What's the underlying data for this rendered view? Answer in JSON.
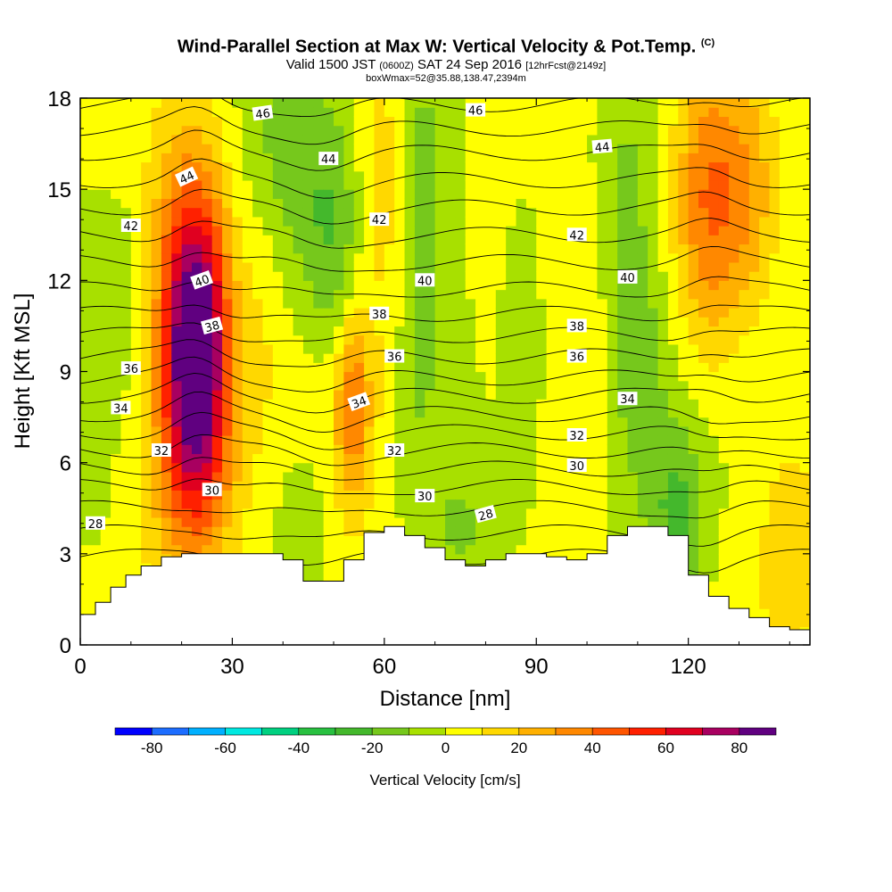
{
  "header": {
    "title": "Wind-Parallel Section at Max W: Vertical Velocity & Pot.Temp.",
    "title_tag": "(C)",
    "valid_main": "Valid 1500 JST",
    "valid_utc": "(0600Z)",
    "valid_date": "SAT 24 Sep 2016",
    "forecast": "[12hrFcst@2149z]",
    "box_info": "boxWmax=52@35.88,138.47,2394m"
  },
  "chart_data": {
    "type": "heatmap",
    "xlabel": "Distance [nm]",
    "ylabel": "Height [Kft MSL]",
    "xlim": [
      0,
      144
    ],
    "ylim": [
      0,
      18
    ],
    "x_ticks": [
      "0",
      "30",
      "60",
      "90",
      "120"
    ],
    "x_tick_values": [
      0,
      30,
      60,
      90,
      120
    ],
    "y_ticks": [
      "0",
      "3",
      "6",
      "9",
      "12",
      "15",
      "18"
    ],
    "y_tick_values": [
      0,
      3,
      6,
      9,
      12,
      15,
      18
    ],
    "colorbar": {
      "label": "Vertical Velocity [cm/s]",
      "levels": [
        -90,
        -80,
        -70,
        -60,
        -50,
        -40,
        -30,
        -20,
        -10,
        0,
        10,
        20,
        30,
        40,
        50,
        60,
        70,
        80,
        90
      ],
      "colors": [
        "#0000ff",
        "#1d6dff",
        "#00b0ff",
        "#00e8e0",
        "#00d080",
        "#28c040",
        "#44b82c",
        "#76c81c",
        "#a8e000",
        "#ffff00",
        "#ffd800",
        "#ffb000",
        "#ff8800",
        "#ff5500",
        "#ff2000",
        "#e00020",
        "#a80060",
        "#600080"
      ],
      "tick_labels": [
        "-80",
        "-60",
        "-40",
        "-20",
        "0",
        "20",
        "40",
        "60",
        "80"
      ],
      "tick_values": [
        -80,
        -60,
        -40,
        -20,
        0,
        20,
        40,
        60,
        80
      ]
    },
    "velocity_features": [
      {
        "x": 23,
        "y": 9.5,
        "sx": 4.5,
        "sy": 3.6,
        "w": 85
      },
      {
        "x": 20,
        "y": 10.5,
        "sx": 6,
        "sy": 4.5,
        "w": 25
      },
      {
        "x": 124,
        "y": 14.5,
        "sx": 4.5,
        "sy": 3.5,
        "w": 35
      },
      {
        "x": 132,
        "y": 15,
        "sx": 4,
        "sy": 3,
        "w": 20
      },
      {
        "x": 54,
        "y": 8,
        "sx": 2.2,
        "sy": 2,
        "w": 30
      },
      {
        "x": 52,
        "y": 7,
        "sx": 4,
        "sy": 4,
        "w": 12
      },
      {
        "x": 10,
        "y": 12,
        "sx": 3.5,
        "sy": 2.5,
        "w": -12
      },
      {
        "x": 3,
        "y": 9,
        "sx": 3,
        "sy": 4,
        "w": -8
      },
      {
        "x": 40,
        "y": 16.5,
        "sx": 6,
        "sy": 3,
        "w": -16
      },
      {
        "x": 50,
        "y": 13,
        "sx": 4,
        "sy": 3,
        "w": -22
      },
      {
        "x": 66,
        "y": 12,
        "sx": 3,
        "sy": 6,
        "w": -15
      },
      {
        "x": 70,
        "y": 15,
        "sx": 4,
        "sy": 4,
        "w": -12
      },
      {
        "x": 88,
        "y": 9.5,
        "sx": 3,
        "sy": 3,
        "w": -12
      },
      {
        "x": 108,
        "y": 15,
        "sx": 4,
        "sy": 4,
        "w": -12
      },
      {
        "x": 110,
        "y": 8.5,
        "sx": 4,
        "sy": 3,
        "w": -18
      },
      {
        "x": 118,
        "y": 4,
        "sx": 4,
        "sy": 2.5,
        "w": -25
      },
      {
        "x": 75,
        "y": 3.8,
        "sx": 5,
        "sy": 1.5,
        "w": -14
      },
      {
        "x": 45,
        "y": 4,
        "sx": 5,
        "sy": 2,
        "w": -10
      },
      {
        "x": 36,
        "y": 12,
        "sx": 3,
        "sy": 4,
        "w": 8
      },
      {
        "x": 62,
        "y": 10,
        "sx": 4,
        "sy": 4,
        "w": 8
      },
      {
        "x": 97,
        "y": 12,
        "sx": 6,
        "sy": 5,
        "w": 6
      },
      {
        "x": 60,
        "y": 16,
        "sx": 4,
        "sy": 3,
        "w": 10
      },
      {
        "x": 22,
        "y": 5,
        "sx": 8,
        "sy": 2,
        "w": 10
      },
      {
        "x": 140,
        "y": 3,
        "sx": 4,
        "sy": 2.5,
        "w": 18
      }
    ],
    "terrain": {
      "x": [
        0,
        3,
        6,
        9,
        12,
        16,
        20,
        24,
        28,
        32,
        36,
        40,
        44,
        48,
        52,
        56,
        60,
        64,
        68,
        72,
        76,
        80,
        84,
        88,
        92,
        96,
        100,
        104,
        108,
        112,
        116,
        120,
        124,
        128,
        132,
        136,
        140,
        144
      ],
      "height": [
        1.0,
        1.4,
        1.9,
        2.3,
        2.6,
        2.9,
        3.0,
        3.0,
        3.0,
        3.0,
        3.0,
        2.8,
        2.1,
        2.1,
        2.8,
        3.7,
        3.9,
        3.6,
        3.2,
        2.8,
        2.6,
        2.8,
        3.0,
        3.0,
        2.9,
        2.8,
        3.0,
        3.6,
        3.9,
        3.9,
        3.6,
        2.3,
        1.6,
        1.2,
        0.9,
        0.6,
        0.5,
        0.8
      ]
    },
    "theta_levels": [
      27,
      28,
      29,
      30,
      31,
      32,
      33,
      34,
      35,
      36,
      37,
      38,
      39,
      40,
      41,
      42,
      43,
      44,
      45,
      46,
      47
    ],
    "theta_base_heights": [
      2.9,
      3.7,
      4.5,
      5.2,
      5.8,
      6.4,
      7.0,
      7.6,
      8.2,
      8.8,
      9.5,
      10.2,
      10.9,
      11.7,
      12.6,
      13.5,
      14.4,
      15.3,
      16.2,
      17.0,
      17.8
    ],
    "theta_line_labels": [
      {
        "text": "46",
        "x": 36,
        "y": 17.5,
        "rot": -8
      },
      {
        "text": "46",
        "x": 78,
        "y": 17.6,
        "rot": 0
      },
      {
        "text": "44",
        "x": 21,
        "y": 15.4,
        "rot": -25
      },
      {
        "text": "44",
        "x": 49,
        "y": 16.0,
        "rot": 0
      },
      {
        "text": "44",
        "x": 103,
        "y": 16.4,
        "rot": -5
      },
      {
        "text": "42",
        "x": 10,
        "y": 13.8,
        "rot": 0
      },
      {
        "text": "42",
        "x": 59,
        "y": 14.0,
        "rot": 0
      },
      {
        "text": "42",
        "x": 98,
        "y": 13.5,
        "rot": 0
      },
      {
        "text": "40",
        "x": 24,
        "y": 12.0,
        "rot": -20
      },
      {
        "text": "40",
        "x": 68,
        "y": 12.0,
        "rot": 0
      },
      {
        "text": "40",
        "x": 108,
        "y": 12.1,
        "rot": 0
      },
      {
        "text": "38",
        "x": 26,
        "y": 10.5,
        "rot": -15
      },
      {
        "text": "38",
        "x": 59,
        "y": 10.9,
        "rot": 0
      },
      {
        "text": "38",
        "x": 98,
        "y": 10.5,
        "rot": 0
      },
      {
        "text": "36",
        "x": 10,
        "y": 9.1,
        "rot": 0
      },
      {
        "text": "36",
        "x": 62,
        "y": 9.5,
        "rot": 0
      },
      {
        "text": "36",
        "x": 98,
        "y": 9.5,
        "rot": 0
      },
      {
        "text": "34",
        "x": 8,
        "y": 7.8,
        "rot": 0
      },
      {
        "text": "34",
        "x": 55,
        "y": 8.0,
        "rot": -20
      },
      {
        "text": "34",
        "x": 108,
        "y": 8.1,
        "rot": 0
      },
      {
        "text": "32",
        "x": 16,
        "y": 6.4,
        "rot": 0
      },
      {
        "text": "32",
        "x": 62,
        "y": 6.4,
        "rot": 0
      },
      {
        "text": "32",
        "x": 98,
        "y": 6.9,
        "rot": 0
      },
      {
        "text": "30",
        "x": 26,
        "y": 5.1,
        "rot": 0
      },
      {
        "text": "30",
        "x": 68,
        "y": 4.9,
        "rot": 0
      },
      {
        "text": "30",
        "x": 98,
        "y": 5.9,
        "rot": 0
      },
      {
        "text": "28",
        "x": 3,
        "y": 4.0,
        "rot": 0
      },
      {
        "text": "28",
        "x": 80,
        "y": 4.3,
        "rot": -15
      }
    ]
  }
}
